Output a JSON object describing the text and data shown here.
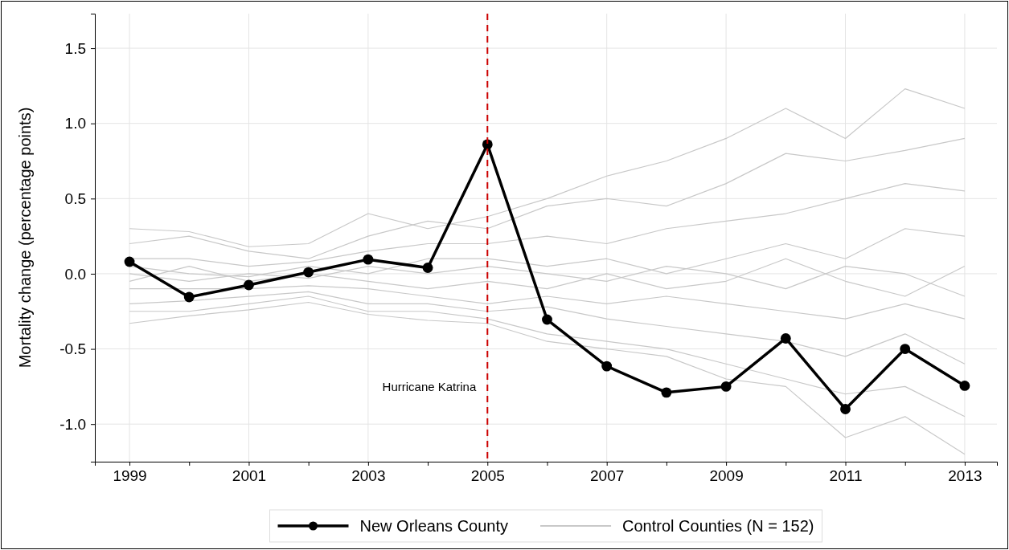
{
  "chart_data": {
    "type": "line",
    "ylabel": "Mortality change (percentage points)",
    "x": [
      1999,
      2000,
      2001,
      2002,
      2003,
      2004,
      2005,
      2006,
      2007,
      2008,
      2009,
      2010,
      2011,
      2012,
      2013
    ],
    "xlim": [
      1998.42,
      2013.54
    ],
    "xticks": [
      1999,
      {
        "value": 2000,
        "label": null
      },
      2001,
      {
        "value": 2002,
        "label": null
      },
      2003,
      {
        "value": 2004,
        "label": null
      },
      2005,
      {
        "value": 2006,
        "label": null
      },
      2007,
      {
        "value": 2008,
        "label": null
      },
      2009,
      {
        "value": 2010,
        "label": null
      },
      2011,
      {
        "value": 2012,
        "label": null
      },
      2013
    ],
    "ylim": [
      -1.25,
      1.73
    ],
    "yticks": [
      {
        "value": -1,
        "label": "-1.0"
      },
      {
        "value": -0.5,
        "label": "-0.5"
      },
      {
        "value": 0,
        "label": "0.0"
      },
      {
        "value": 0.5,
        "label": "0.5"
      },
      {
        "value": 1,
        "label": "1.0"
      },
      {
        "value": 1.5,
        "label": "1.5"
      }
    ],
    "grid": true,
    "legend": "bottom",
    "ref_lines": [
      {
        "axis": "x",
        "value": 2005,
        "label": "Hurricane Katrina",
        "color": "#cc0000",
        "line_style": "dashed"
      }
    ],
    "series": [
      {
        "name": "Control Counties (N = 152)",
        "color": "#c8c8c8",
        "marker": "none",
        "values": [
          0.3,
          0.28,
          0.18,
          0.2,
          0.4,
          0.3,
          0.38,
          0.5,
          0.65,
          0.75,
          0.9,
          1.1,
          0.9,
          1.23,
          1.1
        ]
      },
      {
        "color": "#c8c8c8",
        "marker": "none",
        "values": [
          0.2,
          0.25,
          0.15,
          0.1,
          0.25,
          0.35,
          0.3,
          0.45,
          0.5,
          0.45,
          0.6,
          0.8,
          0.75,
          0.82,
          0.9
        ]
      },
      {
        "color": "#c8c8c8",
        "marker": "none",
        "values": [
          0.1,
          0.1,
          0.05,
          0.08,
          0.15,
          0.2,
          0.2,
          0.25,
          0.2,
          0.3,
          0.35,
          0.4,
          0.5,
          0.6,
          0.55
        ]
      },
      {
        "color": "#c8c8c8",
        "marker": "none",
        "values": [
          0.05,
          0,
          -0.02,
          0.05,
          0,
          0.1,
          0.1,
          0.05,
          0.1,
          0,
          0.1,
          0.2,
          0.1,
          0.3,
          0.25
        ]
      },
      {
        "color": "#c8c8c8",
        "marker": "none",
        "values": [
          0,
          -0.05,
          0,
          -0.03,
          0.05,
          0,
          0.05,
          0,
          -0.05,
          0.05,
          0,
          -0.1,
          0.05,
          0,
          -0.15
        ]
      },
      {
        "color": "#c8c8c8",
        "marker": "none",
        "values": [
          -0.05,
          0.05,
          -0.05,
          0,
          -0.05,
          -0.1,
          -0.05,
          -0.1,
          0,
          -0.1,
          -0.05,
          0.1,
          -0.05,
          -0.15,
          0.05
        ]
      },
      {
        "color": "#c8c8c8",
        "marker": "none",
        "values": [
          -0.1,
          -0.1,
          -0.1,
          -0.08,
          -0.1,
          -0.15,
          -0.2,
          -0.15,
          -0.2,
          -0.15,
          -0.2,
          -0.25,
          -0.3,
          -0.2,
          -0.3
        ]
      },
      {
        "color": "#c8c8c8",
        "marker": "none",
        "values": [
          -0.2,
          -0.18,
          -0.15,
          -0.12,
          -0.2,
          -0.2,
          -0.25,
          -0.22,
          -0.3,
          -0.35,
          -0.4,
          -0.45,
          -0.55,
          -0.4,
          -0.6
        ]
      },
      {
        "color": "#c8c8c8",
        "marker": "none",
        "values": [
          -0.25,
          -0.25,
          -0.2,
          -0.15,
          -0.25,
          -0.25,
          -0.3,
          -0.4,
          -0.45,
          -0.5,
          -0.6,
          -0.7,
          -0.8,
          -0.75,
          -0.95
        ]
      },
      {
        "color": "#c8c8c8",
        "marker": "none",
        "values": [
          -0.33,
          -0.28,
          -0.24,
          -0.19,
          -0.27,
          -0.31,
          -0.33,
          -0.45,
          -0.5,
          -0.55,
          -0.7,
          -0.75,
          -1.09,
          -0.95,
          -1.2
        ]
      },
      {
        "name": "New Orleans County",
        "color": "#000000",
        "marker": "circle",
        "values": [
          0.08,
          -0.155,
          -0.075,
          0.01,
          0.095,
          0.04,
          0.86,
          -0.305,
          -0.615,
          -0.79,
          -0.75,
          -0.43,
          -0.9,
          -0.5,
          -0.745
        ]
      }
    ]
  }
}
